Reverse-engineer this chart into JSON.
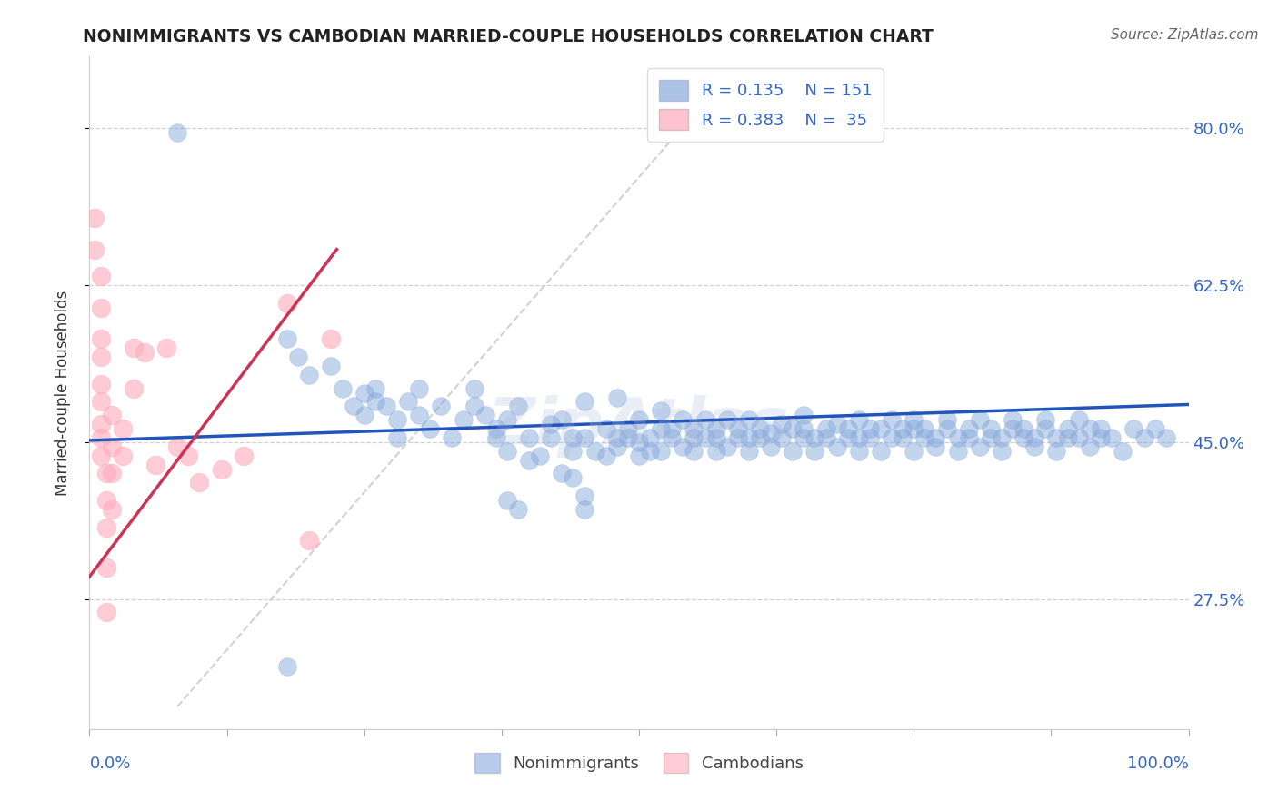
{
  "title": "NONIMMIGRANTS VS CAMBODIAN MARRIED-COUPLE HOUSEHOLDS CORRELATION CHART",
  "source": "Source: ZipAtlas.com",
  "ylabel": "Married-couple Households",
  "ytick_labels": [
    "80.0%",
    "62.5%",
    "45.0%",
    "27.5%"
  ],
  "ytick_values": [
    0.8,
    0.625,
    0.45,
    0.275
  ],
  "xlim": [
    0.0,
    1.0
  ],
  "ylim": [
    0.13,
    0.88
  ],
  "legend_blue_r": "R = 0.135",
  "legend_blue_n": "N = 151",
  "legend_pink_r": "R = 0.383",
  "legend_pink_n": "N = 35",
  "title_color": "#222222",
  "source_color": "#666666",
  "axis_label_color": "#3366cc",
  "blue_color": "#88aadd",
  "blue_edge_color": "#88aadd",
  "pink_color": "#ffaabb",
  "pink_edge_color": "#ffaabb",
  "trendline_blue_color": "#2255bb",
  "trendline_pink_color": "#cc3355",
  "trendline_dashed_color": "#cccccc",
  "watermark": "ZipAtlas",
  "blue_scatter": [
    [
      0.08,
      0.795
    ],
    [
      0.18,
      0.565
    ],
    [
      0.19,
      0.545
    ],
    [
      0.2,
      0.525
    ],
    [
      0.22,
      0.535
    ],
    [
      0.23,
      0.51
    ],
    [
      0.24,
      0.49
    ],
    [
      0.25,
      0.505
    ],
    [
      0.25,
      0.48
    ],
    [
      0.26,
      0.51
    ],
    [
      0.26,
      0.495
    ],
    [
      0.27,
      0.49
    ],
    [
      0.28,
      0.475
    ],
    [
      0.28,
      0.455
    ],
    [
      0.29,
      0.495
    ],
    [
      0.3,
      0.51
    ],
    [
      0.3,
      0.48
    ],
    [
      0.31,
      0.465
    ],
    [
      0.32,
      0.49
    ],
    [
      0.33,
      0.455
    ],
    [
      0.34,
      0.475
    ],
    [
      0.35,
      0.51
    ],
    [
      0.35,
      0.49
    ],
    [
      0.36,
      0.48
    ],
    [
      0.37,
      0.455
    ],
    [
      0.37,
      0.465
    ],
    [
      0.38,
      0.475
    ],
    [
      0.38,
      0.44
    ],
    [
      0.39,
      0.49
    ],
    [
      0.4,
      0.43
    ],
    [
      0.4,
      0.455
    ],
    [
      0.41,
      0.435
    ],
    [
      0.42,
      0.455
    ],
    [
      0.42,
      0.47
    ],
    [
      0.43,
      0.415
    ],
    [
      0.43,
      0.475
    ],
    [
      0.44,
      0.41
    ],
    [
      0.44,
      0.455
    ],
    [
      0.44,
      0.44
    ],
    [
      0.45,
      0.495
    ],
    [
      0.45,
      0.455
    ],
    [
      0.46,
      0.44
    ],
    [
      0.47,
      0.465
    ],
    [
      0.47,
      0.435
    ],
    [
      0.48,
      0.455
    ],
    [
      0.48,
      0.5
    ],
    [
      0.48,
      0.445
    ],
    [
      0.49,
      0.455
    ],
    [
      0.49,
      0.465
    ],
    [
      0.5,
      0.475
    ],
    [
      0.5,
      0.435
    ],
    [
      0.5,
      0.45
    ],
    [
      0.51,
      0.44
    ],
    [
      0.51,
      0.455
    ],
    [
      0.52,
      0.465
    ],
    [
      0.52,
      0.485
    ],
    [
      0.52,
      0.44
    ],
    [
      0.53,
      0.455
    ],
    [
      0.53,
      0.465
    ],
    [
      0.54,
      0.475
    ],
    [
      0.54,
      0.445
    ],
    [
      0.55,
      0.455
    ],
    [
      0.55,
      0.44
    ],
    [
      0.55,
      0.465
    ],
    [
      0.56,
      0.475
    ],
    [
      0.56,
      0.455
    ],
    [
      0.57,
      0.465
    ],
    [
      0.57,
      0.44
    ],
    [
      0.57,
      0.455
    ],
    [
      0.58,
      0.475
    ],
    [
      0.58,
      0.445
    ],
    [
      0.59,
      0.455
    ],
    [
      0.59,
      0.465
    ],
    [
      0.6,
      0.455
    ],
    [
      0.6,
      0.475
    ],
    [
      0.6,
      0.44
    ],
    [
      0.61,
      0.465
    ],
    [
      0.61,
      0.455
    ],
    [
      0.62,
      0.445
    ],
    [
      0.62,
      0.46
    ],
    [
      0.63,
      0.47
    ],
    [
      0.63,
      0.455
    ],
    [
      0.64,
      0.465
    ],
    [
      0.64,
      0.44
    ],
    [
      0.65,
      0.455
    ],
    [
      0.65,
      0.465
    ],
    [
      0.65,
      0.48
    ],
    [
      0.66,
      0.455
    ],
    [
      0.66,
      0.44
    ],
    [
      0.67,
      0.465
    ],
    [
      0.67,
      0.455
    ],
    [
      0.68,
      0.47
    ],
    [
      0.68,
      0.445
    ],
    [
      0.69,
      0.455
    ],
    [
      0.69,
      0.465
    ],
    [
      0.7,
      0.455
    ],
    [
      0.7,
      0.44
    ],
    [
      0.7,
      0.475
    ],
    [
      0.71,
      0.465
    ],
    [
      0.71,
      0.455
    ],
    [
      0.72,
      0.44
    ],
    [
      0.72,
      0.465
    ],
    [
      0.73,
      0.455
    ],
    [
      0.73,
      0.475
    ],
    [
      0.74,
      0.465
    ],
    [
      0.74,
      0.455
    ],
    [
      0.75,
      0.44
    ],
    [
      0.75,
      0.465
    ],
    [
      0.75,
      0.475
    ],
    [
      0.76,
      0.455
    ],
    [
      0.76,
      0.465
    ],
    [
      0.77,
      0.445
    ],
    [
      0.77,
      0.455
    ],
    [
      0.78,
      0.465
    ],
    [
      0.78,
      0.475
    ],
    [
      0.79,
      0.455
    ],
    [
      0.79,
      0.44
    ],
    [
      0.8,
      0.465
    ],
    [
      0.8,
      0.455
    ],
    [
      0.81,
      0.475
    ],
    [
      0.81,
      0.445
    ],
    [
      0.82,
      0.455
    ],
    [
      0.82,
      0.465
    ],
    [
      0.83,
      0.455
    ],
    [
      0.83,
      0.44
    ],
    [
      0.84,
      0.465
    ],
    [
      0.84,
      0.475
    ],
    [
      0.85,
      0.455
    ],
    [
      0.85,
      0.465
    ],
    [
      0.86,
      0.445
    ],
    [
      0.86,
      0.455
    ],
    [
      0.87,
      0.465
    ],
    [
      0.87,
      0.475
    ],
    [
      0.88,
      0.455
    ],
    [
      0.88,
      0.44
    ],
    [
      0.89,
      0.465
    ],
    [
      0.89,
      0.455
    ],
    [
      0.9,
      0.475
    ],
    [
      0.9,
      0.455
    ],
    [
      0.91,
      0.465
    ],
    [
      0.91,
      0.445
    ],
    [
      0.92,
      0.455
    ],
    [
      0.92,
      0.465
    ],
    [
      0.93,
      0.455
    ],
    [
      0.94,
      0.44
    ],
    [
      0.95,
      0.465
    ],
    [
      0.96,
      0.455
    ],
    [
      0.97,
      0.465
    ],
    [
      0.98,
      0.455
    ],
    [
      0.18,
      0.2
    ],
    [
      0.38,
      0.385
    ],
    [
      0.39,
      0.375
    ],
    [
      0.45,
      0.39
    ],
    [
      0.45,
      0.375
    ]
  ],
  "pink_scatter": [
    [
      0.005,
      0.7
    ],
    [
      0.005,
      0.665
    ],
    [
      0.01,
      0.635
    ],
    [
      0.01,
      0.6
    ],
    [
      0.01,
      0.565
    ],
    [
      0.01,
      0.545
    ],
    [
      0.01,
      0.515
    ],
    [
      0.01,
      0.495
    ],
    [
      0.01,
      0.47
    ],
    [
      0.01,
      0.455
    ],
    [
      0.01,
      0.435
    ],
    [
      0.015,
      0.415
    ],
    [
      0.015,
      0.385
    ],
    [
      0.015,
      0.355
    ],
    [
      0.015,
      0.31
    ],
    [
      0.015,
      0.26
    ],
    [
      0.02,
      0.48
    ],
    [
      0.02,
      0.445
    ],
    [
      0.02,
      0.415
    ],
    [
      0.02,
      0.375
    ],
    [
      0.03,
      0.465
    ],
    [
      0.03,
      0.435
    ],
    [
      0.04,
      0.555
    ],
    [
      0.04,
      0.51
    ],
    [
      0.05,
      0.55
    ],
    [
      0.06,
      0.425
    ],
    [
      0.07,
      0.555
    ],
    [
      0.08,
      0.445
    ],
    [
      0.09,
      0.435
    ],
    [
      0.1,
      0.405
    ],
    [
      0.12,
      0.42
    ],
    [
      0.14,
      0.435
    ],
    [
      0.18,
      0.605
    ],
    [
      0.2,
      0.34
    ],
    [
      0.22,
      0.565
    ]
  ],
  "blue_trendline_x": [
    0.0,
    1.0
  ],
  "blue_trendline_y": [
    0.452,
    0.492
  ],
  "pink_trendline_x": [
    0.0,
    0.225
  ],
  "pink_trendline_y": [
    0.3,
    0.665
  ],
  "dashed_trendline_x": [
    0.08,
    0.56
  ],
  "dashed_trendline_y": [
    0.155,
    0.83
  ]
}
